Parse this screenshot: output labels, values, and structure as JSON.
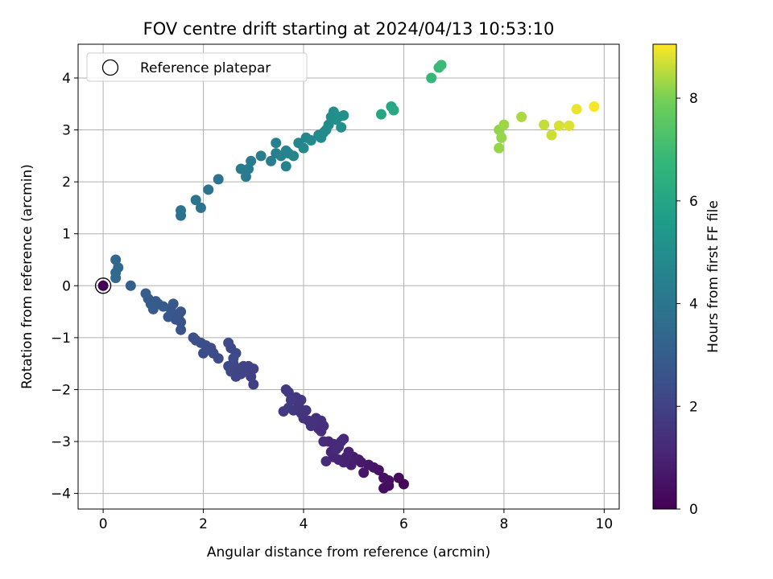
{
  "chart_data": {
    "type": "scatter",
    "title": "FOV centre drift starting at 2024/04/13 10:53:10",
    "xlabel": "Angular distance from reference (arcmin)",
    "ylabel": "Rotation from reference (arcmin)",
    "xlim": [
      -0.5,
      10.3
    ],
    "ylim": [
      -4.3,
      4.65
    ],
    "xticks": [
      0,
      2,
      4,
      6,
      8,
      10
    ],
    "yticks": [
      -4,
      -3,
      -2,
      -1,
      0,
      1,
      2,
      3,
      4
    ],
    "grid": true,
    "legend": {
      "entries": [
        "Reference platepar"
      ],
      "placement": "upper-left"
    },
    "colorbar": {
      "label": "Hours from first FF file",
      "range": [
        0,
        9.05
      ],
      "ticks": [
        0,
        2,
        4,
        6,
        8
      ],
      "colormap": "viridis"
    },
    "reference_point": {
      "x": 0,
      "y": 0
    },
    "points": [
      {
        "x": 6.0,
        "y": -3.82,
        "h": 0.2
      },
      {
        "x": 5.9,
        "y": -3.7,
        "h": 0.25
      },
      {
        "x": 5.7,
        "y": -3.85,
        "h": 0.3
      },
      {
        "x": 5.6,
        "y": -3.9,
        "h": 0.35
      },
      {
        "x": 5.7,
        "y": -3.75,
        "h": 0.4
      },
      {
        "x": 5.6,
        "y": -3.7,
        "h": 0.45
      },
      {
        "x": 5.5,
        "y": -3.55,
        "h": 0.5
      },
      {
        "x": 5.4,
        "y": -3.5,
        "h": 0.55
      },
      {
        "x": 5.3,
        "y": -3.45,
        "h": 0.6
      },
      {
        "x": 5.2,
        "y": -3.6,
        "h": 0.65
      },
      {
        "x": 5.15,
        "y": -3.4,
        "h": 0.7
      },
      {
        "x": 5.1,
        "y": -3.35,
        "h": 0.75
      },
      {
        "x": 5.0,
        "y": -3.3,
        "h": 0.8
      },
      {
        "x": 4.95,
        "y": -3.45,
        "h": 0.85
      },
      {
        "x": 4.9,
        "y": -3.2,
        "h": 0.9
      },
      {
        "x": 4.85,
        "y": -3.3,
        "h": 0.95
      },
      {
        "x": 4.8,
        "y": -3.4,
        "h": 1.0
      },
      {
        "x": 4.7,
        "y": -3.35,
        "h": 1.02
      },
      {
        "x": 4.6,
        "y": -3.3,
        "h": 1.05
      },
      {
        "x": 4.55,
        "y": -3.2,
        "h": 1.08
      },
      {
        "x": 4.5,
        "y": -3.0,
        "h": 1.1
      },
      {
        "x": 4.6,
        "y": -3.05,
        "h": 1.12
      },
      {
        "x": 4.7,
        "y": -3.1,
        "h": 1.15
      },
      {
        "x": 4.8,
        "y": -2.95,
        "h": 1.18
      },
      {
        "x": 4.75,
        "y": -3.0,
        "h": 1.2
      },
      {
        "x": 4.65,
        "y": -3.15,
        "h": 1.22
      },
      {
        "x": 4.45,
        "y": -3.38,
        "h": 1.25
      },
      {
        "x": 4.4,
        "y": -3.0,
        "h": 1.28
      },
      {
        "x": 4.35,
        "y": -2.8,
        "h": 1.3
      },
      {
        "x": 4.3,
        "y": -2.75,
        "h": 1.32
      },
      {
        "x": 4.25,
        "y": -2.55,
        "h": 1.35
      },
      {
        "x": 4.35,
        "y": -2.6,
        "h": 1.38
      },
      {
        "x": 4.4,
        "y": -2.7,
        "h": 1.4
      },
      {
        "x": 4.2,
        "y": -2.65,
        "h": 1.42
      },
      {
        "x": 4.15,
        "y": -2.7,
        "h": 1.45
      },
      {
        "x": 4.1,
        "y": -2.6,
        "h": 1.48
      },
      {
        "x": 4.0,
        "y": -2.55,
        "h": 1.5
      },
      {
        "x": 4.05,
        "y": -2.4,
        "h": 1.52
      },
      {
        "x": 3.95,
        "y": -2.45,
        "h": 1.55
      },
      {
        "x": 3.9,
        "y": -2.3,
        "h": 1.58
      },
      {
        "x": 3.95,
        "y": -2.2,
        "h": 1.6
      },
      {
        "x": 3.85,
        "y": -2.15,
        "h": 1.62
      },
      {
        "x": 3.8,
        "y": -2.4,
        "h": 1.65
      },
      {
        "x": 3.7,
        "y": -2.05,
        "h": 1.68
      },
      {
        "x": 3.65,
        "y": -2.0,
        "h": 1.7
      },
      {
        "x": 3.75,
        "y": -2.2,
        "h": 1.72
      },
      {
        "x": 3.7,
        "y": -2.35,
        "h": 1.75
      },
      {
        "x": 3.6,
        "y": -2.42,
        "h": 1.78
      },
      {
        "x": 3.0,
        "y": -1.9,
        "h": 1.9
      },
      {
        "x": 2.95,
        "y": -1.75,
        "h": 1.92
      },
      {
        "x": 3.0,
        "y": -1.6,
        "h": 1.95
      },
      {
        "x": 2.9,
        "y": -1.55,
        "h": 1.98
      },
      {
        "x": 2.85,
        "y": -1.65,
        "h": 2.0
      },
      {
        "x": 2.75,
        "y": -1.7,
        "h": 2.02
      },
      {
        "x": 2.8,
        "y": -1.55,
        "h": 2.05
      },
      {
        "x": 2.7,
        "y": -1.6,
        "h": 2.08
      },
      {
        "x": 2.65,
        "y": -1.75,
        "h": 2.1
      },
      {
        "x": 2.6,
        "y": -1.5,
        "h": 2.12
      },
      {
        "x": 2.55,
        "y": -1.65,
        "h": 2.15
      },
      {
        "x": 2.5,
        "y": -1.55,
        "h": 2.18
      },
      {
        "x": 2.65,
        "y": -1.3,
        "h": 2.2
      },
      {
        "x": 2.55,
        "y": -1.2,
        "h": 2.22
      },
      {
        "x": 2.6,
        "y": -1.4,
        "h": 2.25
      },
      {
        "x": 2.5,
        "y": -1.1,
        "h": 2.28
      },
      {
        "x": 2.3,
        "y": -1.4,
        "h": 2.3
      },
      {
        "x": 2.2,
        "y": -1.3,
        "h": 2.32
      },
      {
        "x": 2.15,
        "y": -1.2,
        "h": 2.35
      },
      {
        "x": 2.05,
        "y": -1.15,
        "h": 2.38
      },
      {
        "x": 2.0,
        "y": -1.3,
        "h": 2.4
      },
      {
        "x": 1.95,
        "y": -1.1,
        "h": 2.42
      },
      {
        "x": 1.85,
        "y": -1.05,
        "h": 2.45
      },
      {
        "x": 1.8,
        "y": -1.0,
        "h": 2.48
      },
      {
        "x": 1.55,
        "y": -0.85,
        "h": 2.6
      },
      {
        "x": 1.55,
        "y": -0.7,
        "h": 2.62
      },
      {
        "x": 1.5,
        "y": -0.6,
        "h": 2.65
      },
      {
        "x": 1.45,
        "y": -0.65,
        "h": 2.68
      },
      {
        "x": 1.55,
        "y": -0.5,
        "h": 2.7
      },
      {
        "x": 1.4,
        "y": -0.55,
        "h": 2.72
      },
      {
        "x": 1.35,
        "y": -0.45,
        "h": 2.75
      },
      {
        "x": 1.4,
        "y": -0.35,
        "h": 2.78
      },
      {
        "x": 1.3,
        "y": -0.6,
        "h": 2.8
      },
      {
        "x": 1.2,
        "y": -0.4,
        "h": 2.82
      },
      {
        "x": 1.1,
        "y": -0.35,
        "h": 2.85
      },
      {
        "x": 1.05,
        "y": -0.3,
        "h": 2.88
      },
      {
        "x": 1.0,
        "y": -0.45,
        "h": 2.9
      },
      {
        "x": 0.95,
        "y": -0.35,
        "h": 2.92
      },
      {
        "x": 0.9,
        "y": -0.25,
        "h": 2.95
      },
      {
        "x": 0.85,
        "y": -0.15,
        "h": 2.98
      },
      {
        "x": 0.55,
        "y": 0.0,
        "h": 3.1
      },
      {
        "x": 0.25,
        "y": 0.5,
        "h": 3.4
      },
      {
        "x": 0.3,
        "y": 0.35,
        "h": 3.42
      },
      {
        "x": 0.25,
        "y": 0.25,
        "h": 3.45
      },
      {
        "x": 0.25,
        "y": 0.15,
        "h": 3.48
      },
      {
        "x": 1.55,
        "y": 1.35,
        "h": 3.8
      },
      {
        "x": 1.55,
        "y": 1.45,
        "h": 3.82
      },
      {
        "x": 1.95,
        "y": 1.5,
        "h": 3.85
      },
      {
        "x": 1.85,
        "y": 1.65,
        "h": 3.88
      },
      {
        "x": 2.1,
        "y": 1.85,
        "h": 3.9
      },
      {
        "x": 2.3,
        "y": 2.05,
        "h": 3.95
      },
      {
        "x": 2.75,
        "y": 2.25,
        "h": 4.2
      },
      {
        "x": 2.85,
        "y": 2.1,
        "h": 4.22
      },
      {
        "x": 2.9,
        "y": 2.25,
        "h": 4.25
      },
      {
        "x": 2.95,
        "y": 2.4,
        "h": 4.28
      },
      {
        "x": 3.15,
        "y": 2.5,
        "h": 4.3
      },
      {
        "x": 3.35,
        "y": 2.4,
        "h": 4.35
      },
      {
        "x": 3.45,
        "y": 2.55,
        "h": 4.4
      },
      {
        "x": 3.45,
        "y": 2.75,
        "h": 4.45
      },
      {
        "x": 3.55,
        "y": 2.5,
        "h": 4.5
      },
      {
        "x": 3.65,
        "y": 2.6,
        "h": 4.52
      },
      {
        "x": 3.7,
        "y": 2.55,
        "h": 4.55
      },
      {
        "x": 3.65,
        "y": 2.3,
        "h": 4.58
      },
      {
        "x": 3.8,
        "y": 2.5,
        "h": 4.6
      },
      {
        "x": 3.9,
        "y": 2.75,
        "h": 4.65
      },
      {
        "x": 4.0,
        "y": 2.65,
        "h": 4.68
      },
      {
        "x": 4.05,
        "y": 2.85,
        "h": 4.7
      },
      {
        "x": 4.15,
        "y": 2.8,
        "h": 4.75
      },
      {
        "x": 4.3,
        "y": 2.9,
        "h": 4.8
      },
      {
        "x": 4.35,
        "y": 2.85,
        "h": 4.85
      },
      {
        "x": 4.4,
        "y": 2.95,
        "h": 4.88
      },
      {
        "x": 4.45,
        "y": 3.0,
        "h": 4.9
      },
      {
        "x": 4.5,
        "y": 3.1,
        "h": 4.95
      },
      {
        "x": 4.55,
        "y": 3.25,
        "h": 4.98
      },
      {
        "x": 4.6,
        "y": 3.35,
        "h": 5.0
      },
      {
        "x": 4.65,
        "y": 3.2,
        "h": 5.05
      },
      {
        "x": 4.7,
        "y": 3.25,
        "h": 5.08
      },
      {
        "x": 4.75,
        "y": 3.05,
        "h": 5.1
      },
      {
        "x": 4.8,
        "y": 3.28,
        "h": 5.15
      },
      {
        "x": 5.55,
        "y": 3.3,
        "h": 6.0
      },
      {
        "x": 5.75,
        "y": 3.45,
        "h": 6.05
      },
      {
        "x": 5.8,
        "y": 3.38,
        "h": 6.1
      },
      {
        "x": 6.55,
        "y": 4.0,
        "h": 6.8
      },
      {
        "x": 6.7,
        "y": 4.2,
        "h": 6.85
      },
      {
        "x": 6.75,
        "y": 4.25,
        "h": 6.9
      },
      {
        "x": 7.9,
        "y": 3.0,
        "h": 8.2
      },
      {
        "x": 7.95,
        "y": 2.85,
        "h": 8.22
      },
      {
        "x": 7.9,
        "y": 2.65,
        "h": 8.25
      },
      {
        "x": 8.0,
        "y": 3.1,
        "h": 8.3
      },
      {
        "x": 8.35,
        "y": 3.25,
        "h": 8.4
      },
      {
        "x": 8.8,
        "y": 3.1,
        "h": 8.6
      },
      {
        "x": 8.95,
        "y": 2.9,
        "h": 8.65
      },
      {
        "x": 9.1,
        "y": 3.08,
        "h": 8.75
      },
      {
        "x": 9.3,
        "y": 3.08,
        "h": 8.8
      },
      {
        "x": 9.45,
        "y": 3.4,
        "h": 8.9
      },
      {
        "x": 9.8,
        "y": 3.45,
        "h": 9.0
      }
    ]
  }
}
